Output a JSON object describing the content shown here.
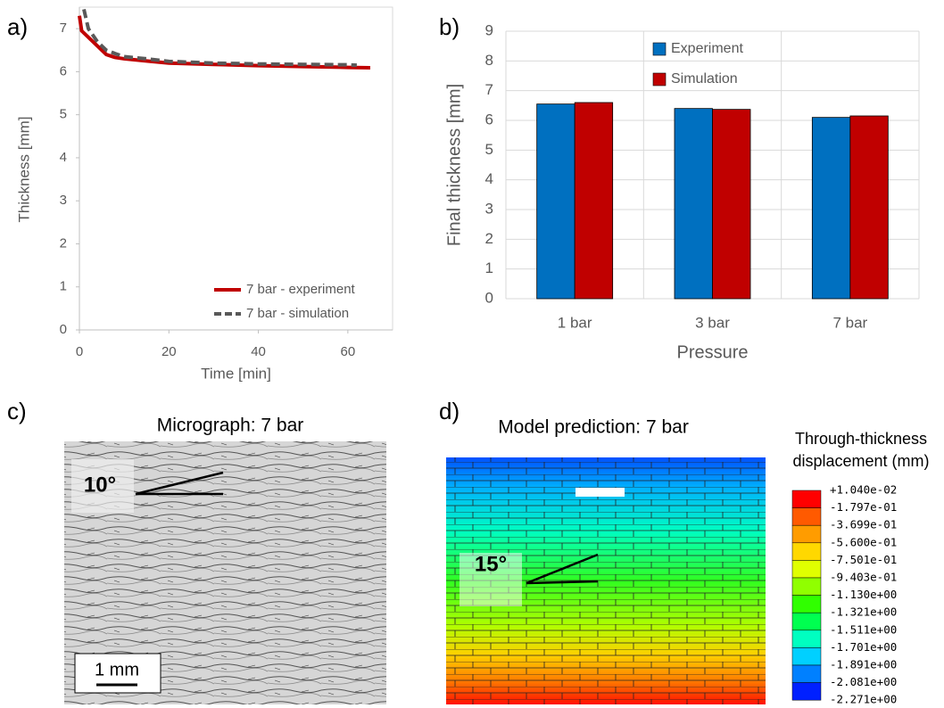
{
  "chart_data": [
    {
      "type": "line",
      "panel": "a)",
      "xlabel": "Time [min]",
      "ylabel": "Thickness [mm]",
      "xlim": [
        0,
        70
      ],
      "xticks": [
        0,
        20,
        40,
        60
      ],
      "ylim": [
        0,
        7.5
      ],
      "yticks": [
        0,
        1,
        2,
        3,
        4,
        5,
        6,
        7
      ],
      "series": [
        {
          "name": "7 bar - experiment",
          "color": "#c00000",
          "dashed": false,
          "x": [
            0,
            0.5,
            2,
            4,
            6,
            8,
            10,
            15,
            20,
            30,
            40,
            50,
            60,
            65
          ],
          "values": [
            7.3,
            6.95,
            6.8,
            6.6,
            6.4,
            6.33,
            6.3,
            6.25,
            6.2,
            6.17,
            6.14,
            6.12,
            6.1,
            6.09
          ]
        },
        {
          "name": "7 bar - simulation",
          "color": "#595959",
          "dashed": true,
          "x": [
            1,
            2,
            4,
            6,
            8,
            10,
            15,
            20,
            30,
            40,
            50,
            60,
            62
          ],
          "values": [
            7.45,
            7.0,
            6.7,
            6.5,
            6.42,
            6.35,
            6.3,
            6.24,
            6.2,
            6.18,
            6.17,
            6.16,
            6.15
          ]
        }
      ]
    },
    {
      "type": "bar",
      "panel": "b)",
      "xlabel": "Pressure",
      "ylabel": "Final thickness [mm]",
      "categories": [
        "1 bar",
        "3 bar",
        "7 bar"
      ],
      "ylim": [
        0,
        9
      ],
      "yticks": [
        0,
        1,
        2,
        3,
        4,
        5,
        6,
        7,
        8,
        9
      ],
      "grid": true,
      "series": [
        {
          "name": "Experiment",
          "color": "#0070c0",
          "values": [
            6.55,
            6.4,
            6.1
          ]
        },
        {
          "name": "Simulation",
          "color": "#c00000",
          "values": [
            6.6,
            6.37,
            6.15
          ]
        }
      ]
    }
  ],
  "micrograph": {
    "panel": "c)",
    "title": "Micrograph: 7 bar",
    "angle": "10°",
    "scale": "1 mm"
  },
  "model": {
    "panel": "d)",
    "title": "Model prediction: 7 bar",
    "angle": "15°",
    "colorbar": {
      "title": [
        "Through-thickness",
        "displacement (mm)"
      ],
      "labels": [
        "+1.040e-02",
        "-1.797e-01",
        "-3.699e-01",
        "-5.600e-01",
        "-7.501e-01",
        "-9.403e-01",
        "-1.130e+00",
        "-1.321e+00",
        "-1.511e+00",
        "-1.701e+00",
        "-1.891e+00",
        "-2.081e+00",
        "-2.271e+00"
      ]
    }
  }
}
